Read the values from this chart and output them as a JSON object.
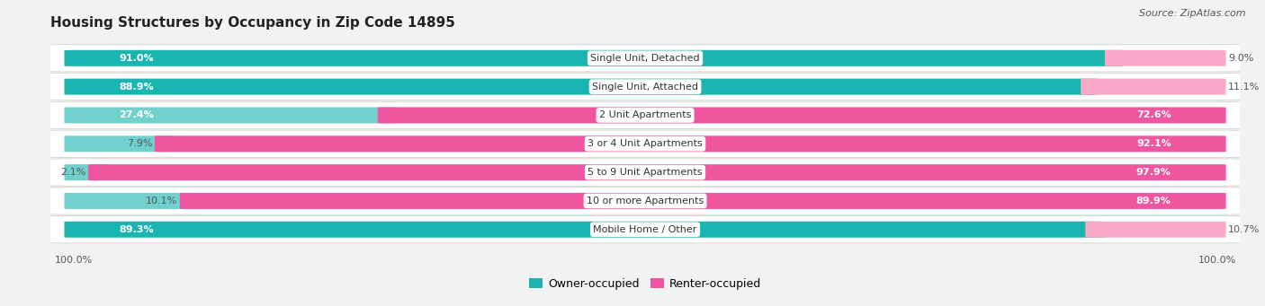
{
  "title": "Housing Structures by Occupancy in Zip Code 14895",
  "source": "Source: ZipAtlas.com",
  "categories": [
    "Single Unit, Detached",
    "Single Unit, Attached",
    "2 Unit Apartments",
    "3 or 4 Unit Apartments",
    "5 to 9 Unit Apartments",
    "10 or more Apartments",
    "Mobile Home / Other"
  ],
  "owner_pct": [
    91.0,
    88.9,
    27.4,
    7.9,
    2.1,
    10.1,
    89.3
  ],
  "renter_pct": [
    9.0,
    11.1,
    72.6,
    92.1,
    97.9,
    89.9,
    10.7
  ],
  "owner_color_dark": "#1ab5b0",
  "owner_color_light": "#70d0ce",
  "renter_color_dark": "#f055a0",
  "renter_color_light": "#f8aac8",
  "bg_color": "#f2f2f2",
  "row_bg": "#e8e8e8",
  "title_fontsize": 11,
  "label_fontsize": 8,
  "pct_fontsize": 8,
  "tick_fontsize": 8,
  "legend_fontsize": 9,
  "source_fontsize": 8
}
